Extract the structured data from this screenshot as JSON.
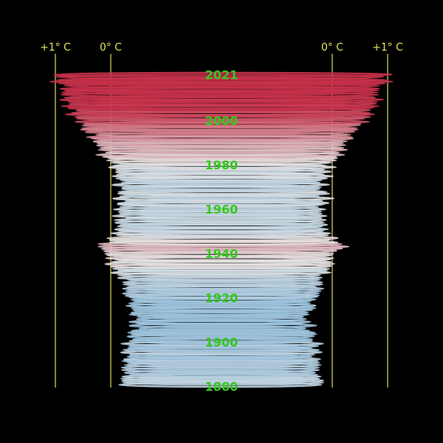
{
  "chart_data": {
    "type": "area",
    "title": "",
    "xlabel": "",
    "ylabel": "",
    "axis_markers": [
      {
        "label": "+1° C",
        "value": 1.0,
        "side": "left"
      },
      {
        "label": "0° C",
        "value": 0.0,
        "side": "left"
      },
      {
        "label": "0° C",
        "value": 0.0,
        "side": "right"
      },
      {
        "label": "+1° C",
        "value": 1.0,
        "side": "right"
      }
    ],
    "year_labels": [
      "2021",
      "2000",
      "1980",
      "1960",
      "1940",
      "1920",
      "1900",
      "1880"
    ],
    "year_range": [
      1880,
      2021
    ],
    "anomaly_range_c": [
      -0.45,
      1.15
    ],
    "colors": {
      "background": "#000000",
      "axis_line": "#d8cf57",
      "axis_text": "#e8e060",
      "year_text": "#34c81e",
      "warm": "#c8324a",
      "neutral": "#e6e6e6",
      "cool": "#9ec4df"
    }
  }
}
